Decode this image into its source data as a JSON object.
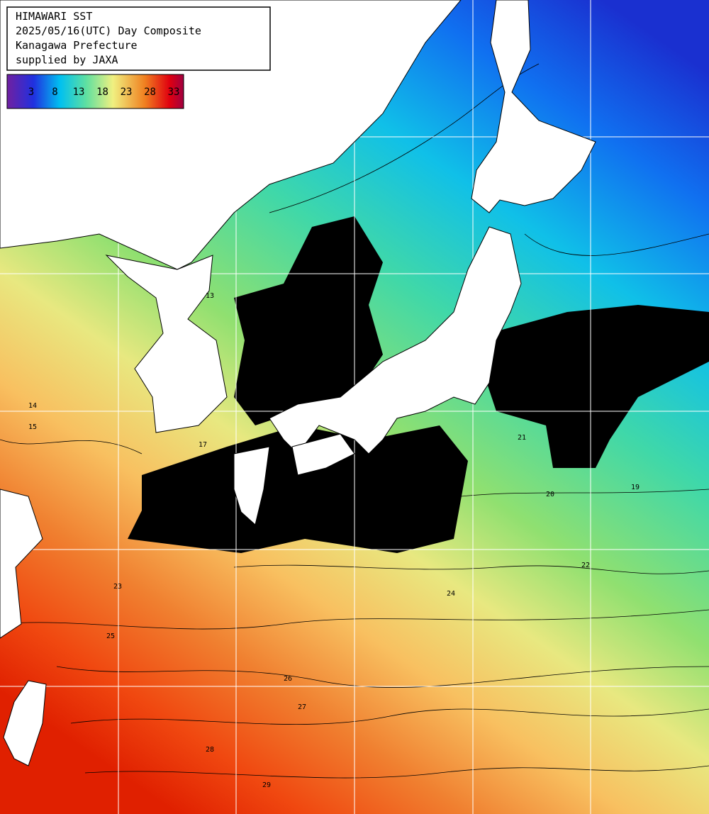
{
  "header": {
    "lines": [
      "HIMAWARI SST",
      "2025/05/16(UTC) Day Composite",
      "Kanagawa Prefecture",
      "supplied by JAXA"
    ]
  },
  "legend": {
    "ticks": [
      3,
      8,
      13,
      18,
      23,
      28,
      33
    ]
  },
  "contour_labels": [
    "13",
    "14",
    "15",
    "17",
    "19",
    "20",
    "21",
    "22",
    "23",
    "24",
    "25",
    "26",
    "27",
    "28",
    "29"
  ]
}
